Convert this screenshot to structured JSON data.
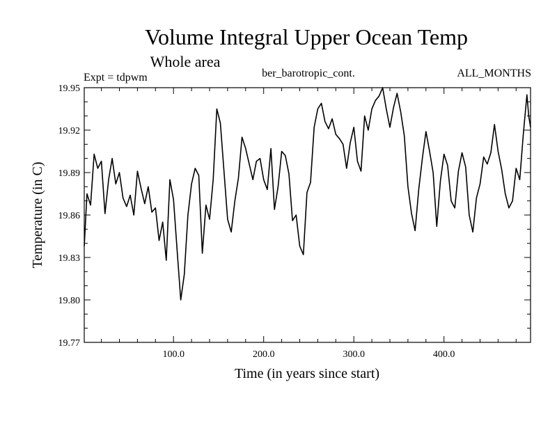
{
  "chart_data": {
    "type": "line",
    "title": "Volume Integral Upper Ocean Temp",
    "subtitle": "Whole area",
    "experiment_label": "Expt = tdpwm",
    "dataset_label": "ber_barotropic_cont.",
    "months_label": "ALL_MONTHS",
    "xlabel": "Time (in years since start)",
    "ylabel": "Temperature (in C)",
    "xlim": [
      1,
      496
    ],
    "ylim": [
      19.77,
      19.95
    ],
    "x_ticks": [
      {
        "value": 100,
        "label": "100.0"
      },
      {
        "value": 200,
        "label": "200.0"
      },
      {
        "value": 300,
        "label": "300.0"
      },
      {
        "value": 400,
        "label": "400.0"
      }
    ],
    "y_ticks": [
      {
        "value": 19.77,
        "label": "19.77"
      },
      {
        "value": 19.8,
        "label": "19.80"
      },
      {
        "value": 19.83,
        "label": "19.83"
      },
      {
        "value": 19.86,
        "label": "19.86"
      },
      {
        "value": 19.89,
        "label": "19.89"
      },
      {
        "value": 19.92,
        "label": "19.92"
      },
      {
        "value": 19.95,
        "label": "19.95"
      }
    ],
    "x_minor_step": 20,
    "y_minor_step": 0.01,
    "grid": false,
    "line_color": "#000000",
    "series": [
      {
        "name": "Volume Integral Upper Ocean Temp",
        "x": [
          1,
          4,
          8,
          12,
          16,
          20,
          24,
          28,
          32,
          36,
          40,
          44,
          48,
          52,
          56,
          60,
          64,
          68,
          72,
          76,
          80,
          84,
          88,
          92,
          96,
          100,
          104,
          108,
          112,
          116,
          120,
          124,
          128,
          132,
          136,
          140,
          144,
          148,
          152,
          156,
          160,
          164,
          168,
          172,
          176,
          180,
          184,
          188,
          192,
          196,
          200,
          204,
          208,
          212,
          216,
          220,
          224,
          228,
          232,
          236,
          240,
          244,
          248,
          252,
          256,
          260,
          264,
          268,
          272,
          276,
          280,
          284,
          288,
          292,
          296,
          300,
          304,
          308,
          312,
          316,
          320,
          324,
          328,
          332,
          336,
          340,
          344,
          348,
          352,
          356,
          360,
          364,
          368,
          372,
          376,
          380,
          384,
          388,
          392,
          396,
          400,
          404,
          408,
          412,
          416,
          420,
          424,
          428,
          432,
          436,
          440,
          444,
          448,
          452,
          456,
          460,
          464,
          468,
          472,
          476,
          480,
          484,
          488,
          492,
          494,
          496
        ],
        "values": [
          19.838,
          19.875,
          19.867,
          19.903,
          19.893,
          19.898,
          19.861,
          19.885,
          19.9,
          19.882,
          19.89,
          19.872,
          19.866,
          19.874,
          19.86,
          19.891,
          19.879,
          19.868,
          19.88,
          19.862,
          19.865,
          19.842,
          19.855,
          19.828,
          19.885,
          19.871,
          19.835,
          19.8,
          19.818,
          19.86,
          19.882,
          19.893,
          19.888,
          19.833,
          19.867,
          19.857,
          19.885,
          19.935,
          19.925,
          19.891,
          19.857,
          19.848,
          19.87,
          19.886,
          19.915,
          19.907,
          19.896,
          19.885,
          19.898,
          19.9,
          19.885,
          19.878,
          19.907,
          19.864,
          19.88,
          19.905,
          19.902,
          19.889,
          19.856,
          19.86,
          19.838,
          19.832,
          19.876,
          19.883,
          19.922,
          19.935,
          19.939,
          19.926,
          19.921,
          19.928,
          19.917,
          19.914,
          19.91,
          19.893,
          19.911,
          19.922,
          19.898,
          19.891,
          19.93,
          19.92,
          19.935,
          19.941,
          19.944,
          19.951,
          19.935,
          19.922,
          19.936,
          19.946,
          19.933,
          19.916,
          19.88,
          19.861,
          19.849,
          19.878,
          19.9,
          19.919,
          19.905,
          19.89,
          19.852,
          19.884,
          19.903,
          19.895,
          19.87,
          19.865,
          19.891,
          19.904,
          19.894,
          19.86,
          19.848,
          19.872,
          19.882,
          19.901,
          19.896,
          19.904,
          19.924,
          19.905,
          19.892,
          19.875,
          19.865,
          19.87,
          19.893,
          19.885,
          19.917,
          19.945,
          19.93,
          19.922
        ]
      }
    ]
  }
}
